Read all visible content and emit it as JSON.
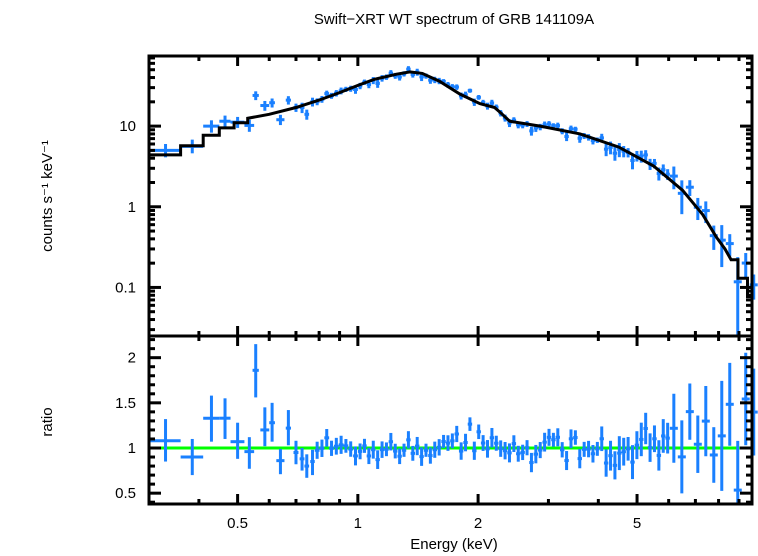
{
  "chart_data": {
    "type": "scatter",
    "title": "Swift−XRT WT spectrum of GRB 141109A",
    "xlabel": "Energy (keV)",
    "xscale": "log",
    "xlim": [
      0.3,
      9.7
    ],
    "x_ticks": [
      {
        "value": 0.5,
        "label": "0.5"
      },
      {
        "value": 1,
        "label": "1"
      },
      {
        "value": 2,
        "label": "2"
      },
      {
        "value": 5,
        "label": "5"
      }
    ],
    "colors": {
      "data": "#1a80ff",
      "model": "#000000",
      "unity": "#00ff00",
      "frame": "#000000"
    },
    "panels": [
      {
        "id": "spectrum",
        "ylabel": "counts s⁻¹ keV⁻¹",
        "yscale": "log",
        "ylim": [
          0.025,
          74
        ],
        "y_ticks": [
          {
            "value": 0.1,
            "label": "0.1"
          },
          {
            "value": 1,
            "label": "1"
          },
          {
            "value": 10,
            "label": "10"
          }
        ],
        "series": [
          {
            "name": "data",
            "style": "crosses",
            "points": [
              {
                "x": 0.33,
                "xlo": 0.3,
                "xhi": 0.36,
                "y": 5.0,
                "ylo": 4.1,
                "yhi": 6.0
              },
              {
                "x": 0.385,
                "xlo": 0.36,
                "xhi": 0.41,
                "y": 5.6,
                "ylo": 4.6,
                "yhi": 6.8
              },
              {
                "x": 0.43,
                "xlo": 0.41,
                "xhi": 0.45,
                "y": 10.0,
                "ylo": 8.3,
                "yhi": 11.8
              },
              {
                "x": 0.465,
                "xlo": 0.45,
                "xhi": 0.48,
                "y": 11.5,
                "ylo": 9.5,
                "yhi": 13.5
              },
              {
                "x": 0.5,
                "xlo": 0.48,
                "xhi": 0.52,
                "y": 11.2,
                "ylo": 9.5,
                "yhi": 13.0
              },
              {
                "x": 0.535,
                "xlo": 0.52,
                "xhi": 0.55,
                "y": 10.2,
                "ylo": 8.5,
                "yhi": 12.0
              },
              {
                "x": 0.555,
                "xlo": 0.545,
                "xhi": 0.565,
                "y": 24.0,
                "ylo": 21.0,
                "yhi": 27.0
              },
              {
                "x": 0.585,
                "xlo": 0.57,
                "xhi": 0.6,
                "y": 18.0,
                "ylo": 15.5,
                "yhi": 20.5
              },
              {
                "x": 0.61,
                "xlo": 0.6,
                "xhi": 0.62,
                "y": 19.5,
                "ylo": 17.0,
                "yhi": 22.0
              },
              {
                "x": 0.64,
                "xlo": 0.625,
                "xhi": 0.655,
                "y": 12.0,
                "ylo": 10.3,
                "yhi": 13.8
              },
              {
                "x": 0.67,
                "xlo": 0.66,
                "xhi": 0.68,
                "y": 21.0,
                "ylo": 18.5,
                "yhi": 23.5
              },
              {
                "x": 0.7,
                "xlo": 0.69,
                "xhi": 0.71,
                "y": 17.0,
                "ylo": 15.0,
                "yhi": 19.0
              },
              {
                "x": 0.725,
                "xlo": 0.715,
                "xhi": 0.735,
                "y": 17.0,
                "ylo": 14.5,
                "yhi": 19.5
              },
              {
                "x": 0.745,
                "xlo": 0.735,
                "xhi": 0.755,
                "y": 14.0,
                "ylo": 12.0,
                "yhi": 16.0
              },
              {
                "x": 0.77,
                "xlo": 0.76,
                "xhi": 0.78,
                "y": 20.0,
                "ylo": 17.5,
                "yhi": 22.5
              }
            ],
            "dense_region": {
              "x_from": 0.78,
              "x_to": 9.6,
              "note": "many narrow bins scattered around the model"
            }
          },
          {
            "name": "model",
            "style": "step",
            "points": [
              {
                "x": 0.3,
                "y": 4.4
              },
              {
                "x": 0.36,
                "y": 4.4
              },
              {
                "x": 0.36,
                "y": 5.7
              },
              {
                "x": 0.41,
                "y": 5.7
              },
              {
                "x": 0.41,
                "y": 7.7
              },
              {
                "x": 0.45,
                "y": 7.7
              },
              {
                "x": 0.45,
                "y": 9.5
              },
              {
                "x": 0.49,
                "y": 9.5
              },
              {
                "x": 0.49,
                "y": 11.0
              },
              {
                "x": 0.53,
                "y": 11.0
              },
              {
                "x": 0.53,
                "y": 12.5
              },
              {
                "x": 0.6,
                "y": 14.0
              },
              {
                "x": 0.7,
                "y": 17.0
              },
              {
                "x": 0.8,
                "y": 21.0
              },
              {
                "x": 0.9,
                "y": 26.0
              },
              {
                "x": 1.0,
                "y": 32.0
              },
              {
                "x": 1.1,
                "y": 38.0
              },
              {
                "x": 1.25,
                "y": 44.0
              },
              {
                "x": 1.35,
                "y": 47.0
              },
              {
                "x": 1.45,
                "y": 45.0
              },
              {
                "x": 1.6,
                "y": 36.0
              },
              {
                "x": 1.8,
                "y": 25.0
              },
              {
                "x": 2.02,
                "y": 19.0
              },
              {
                "x": 2.2,
                "y": 17.0
              },
              {
                "x": 2.3,
                "y": 14.0
              },
              {
                "x": 2.4,
                "y": 11.5
              },
              {
                "x": 2.86,
                "y": 10.0
              },
              {
                "x": 3.6,
                "y": 8.0
              },
              {
                "x": 4.5,
                "y": 5.5
              },
              {
                "x": 5.5,
                "y": 3.2
              },
              {
                "x": 6.5,
                "y": 1.6
              },
              {
                "x": 7.3,
                "y": 0.8
              },
              {
                "x": 7.9,
                "y": 0.42
              },
              {
                "x": 8.3,
                "y": 0.3
              },
              {
                "x": 8.6,
                "y": 0.22
              },
              {
                "x": 8.95,
                "y": 0.22
              },
              {
                "x": 8.95,
                "y": 0.13
              },
              {
                "x": 9.45,
                "y": 0.13
              },
              {
                "x": 9.45,
                "y": 0.077
              },
              {
                "x": 9.7,
                "y": 0.077
              }
            ]
          }
        ]
      },
      {
        "id": "ratio",
        "ylabel": "ratio",
        "yscale": "linear",
        "ylim": [
          0.38,
          2.24
        ],
        "y_ticks": [
          {
            "value": 0.5,
            "label": "0.5"
          },
          {
            "value": 1,
            "label": "1"
          },
          {
            "value": 1.5,
            "label": "1.5"
          },
          {
            "value": 2,
            "label": "2"
          }
        ],
        "reference_line": 1.0,
        "series": [
          {
            "name": "data/model",
            "style": "crosses",
            "points": [
              {
                "x": 0.33,
                "xlo": 0.3,
                "xhi": 0.36,
                "y": 1.08,
                "ylo": 0.85,
                "yhi": 1.32
              },
              {
                "x": 0.385,
                "xlo": 0.36,
                "xhi": 0.41,
                "y": 0.9,
                "ylo": 0.7,
                "yhi": 1.1
              },
              {
                "x": 0.43,
                "xlo": 0.41,
                "xhi": 0.45,
                "y": 1.33,
                "ylo": 1.07,
                "yhi": 1.58
              },
              {
                "x": 0.465,
                "xlo": 0.45,
                "xhi": 0.48,
                "y": 1.33,
                "ylo": 1.1,
                "yhi": 1.55
              },
              {
                "x": 0.5,
                "xlo": 0.48,
                "xhi": 0.52,
                "y": 1.07,
                "ylo": 0.88,
                "yhi": 1.28
              },
              {
                "x": 0.535,
                "xlo": 0.52,
                "xhi": 0.55,
                "y": 0.96,
                "ylo": 0.77,
                "yhi": 1.12
              },
              {
                "x": 0.555,
                "xlo": 0.545,
                "xhi": 0.565,
                "y": 1.86,
                "ylo": 1.56,
                "yhi": 2.15
              },
              {
                "x": 0.585,
                "xlo": 0.57,
                "xhi": 0.6,
                "y": 1.2,
                "ylo": 1.02,
                "yhi": 1.45
              },
              {
                "x": 0.61,
                "xlo": 0.6,
                "xhi": 0.62,
                "y": 1.28,
                "ylo": 1.07,
                "yhi": 1.5
              },
              {
                "x": 0.64,
                "xlo": 0.625,
                "xhi": 0.655,
                "y": 0.86,
                "ylo": 0.71,
                "yhi": 0.99
              },
              {
                "x": 0.67,
                "xlo": 0.66,
                "xhi": 0.68,
                "y": 1.22,
                "ylo": 1.03,
                "yhi": 1.42
              },
              {
                "x": 0.7,
                "xlo": 0.69,
                "xhi": 0.71,
                "y": 0.95,
                "ylo": 0.82,
                "yhi": 1.08
              },
              {
                "x": 0.725,
                "xlo": 0.715,
                "xhi": 0.735,
                "y": 0.88,
                "ylo": 0.75,
                "yhi": 1.0
              },
              {
                "x": 0.745,
                "xlo": 0.735,
                "xhi": 0.755,
                "y": 0.8,
                "ylo": 0.67,
                "yhi": 0.93
              },
              {
                "x": 0.77,
                "xlo": 0.76,
                "xhi": 0.78,
                "y": 0.85,
                "ylo": 0.7,
                "yhi": 0.98
              }
            ],
            "dense_region": {
              "x_from": 0.78,
              "x_to": 9.6,
              "note": "scatter around 1 widening above 5 keV"
            }
          }
        ]
      }
    ]
  }
}
